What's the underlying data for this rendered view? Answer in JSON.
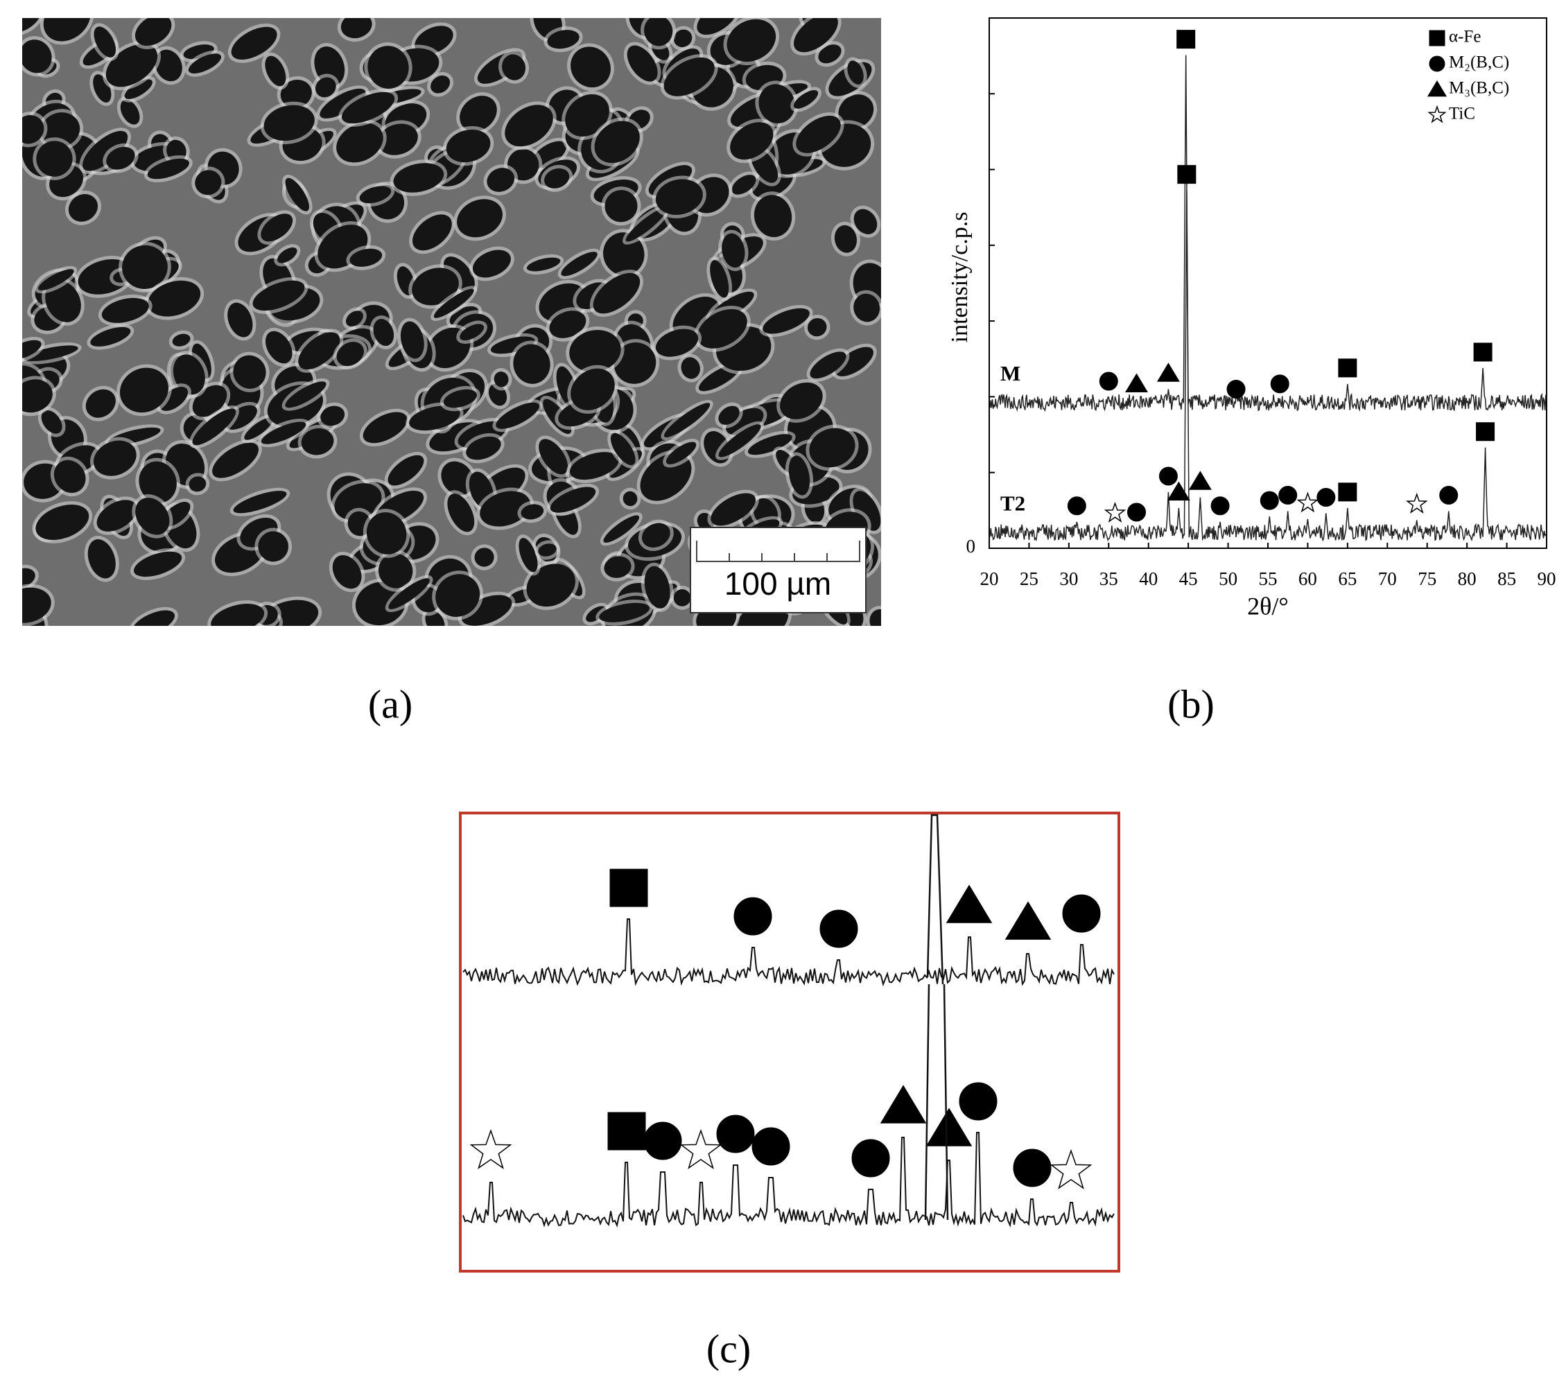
{
  "panel_a": {
    "scale_bar": "100 µm",
    "caption": "(a)"
  },
  "chart_data": {
    "type": "xrd",
    "caption": "(b)",
    "xlabel": "2θ/°",
    "ylabel": "intensity/c.p.s",
    "xlim": [
      20,
      90
    ],
    "xticks": [
      20,
      25,
      30,
      35,
      40,
      45,
      50,
      55,
      60,
      65,
      70,
      75,
      80,
      85,
      90
    ],
    "ylim": [
      0,
      100
    ],
    "yticks": [
      0
    ],
    "legend": [
      {
        "label": "α-Fe",
        "shape": "square"
      },
      {
        "label": "M₂(B,C)",
        "shape": "circle"
      },
      {
        "label": "M₃(B,C)",
        "shape": "triangle"
      },
      {
        "label": "TiC",
        "shape": "star"
      }
    ],
    "series": [
      {
        "name": "M",
        "baseline": 26,
        "markers": [
          {
            "x": 35,
            "y": 31.5,
            "phase": 1
          },
          {
            "x": 38.5,
            "y": 31,
            "phase": 2
          },
          {
            "x": 42.5,
            "y": 33,
            "phase": 2
          },
          {
            "x": 44.7,
            "y": 96,
            "phase": 0
          },
          {
            "x": 51,
            "y": 30,
            "phase": 1
          },
          {
            "x": 56.5,
            "y": 31,
            "phase": 1
          },
          {
            "x": 65,
            "y": 34,
            "phase": 0
          },
          {
            "x": 82,
            "y": 37,
            "phase": 0
          }
        ]
      },
      {
        "name": "T2",
        "baseline": 1.5,
        "markers": [
          {
            "x": 31,
            "y": 8,
            "phase": 1
          },
          {
            "x": 35.8,
            "y": 6.6,
            "phase": 3
          },
          {
            "x": 38.5,
            "y": 6.8,
            "phase": 1
          },
          {
            "x": 42.5,
            "y": 13.6,
            "phase": 1
          },
          {
            "x": 43.8,
            "y": 10.6,
            "phase": 2
          },
          {
            "x": 44.8,
            "y": 70.5,
            "phase": 0
          },
          {
            "x": 46.5,
            "y": 12.6,
            "phase": 2
          },
          {
            "x": 49,
            "y": 8,
            "phase": 1
          },
          {
            "x": 55.2,
            "y": 9,
            "phase": 1
          },
          {
            "x": 57.5,
            "y": 10,
            "phase": 1
          },
          {
            "x": 60,
            "y": 8.5,
            "phase": 3
          },
          {
            "x": 62.3,
            "y": 9.6,
            "phase": 1
          },
          {
            "x": 65,
            "y": 10.6,
            "phase": 0
          },
          {
            "x": 73.7,
            "y": 8.3,
            "phase": 3
          },
          {
            "x": 77.7,
            "y": 10,
            "phase": 1
          },
          {
            "x": 82.3,
            "y": 22,
            "phase": 0
          }
        ]
      }
    ]
  },
  "panel_c": {
    "caption": "(c)"
  }
}
